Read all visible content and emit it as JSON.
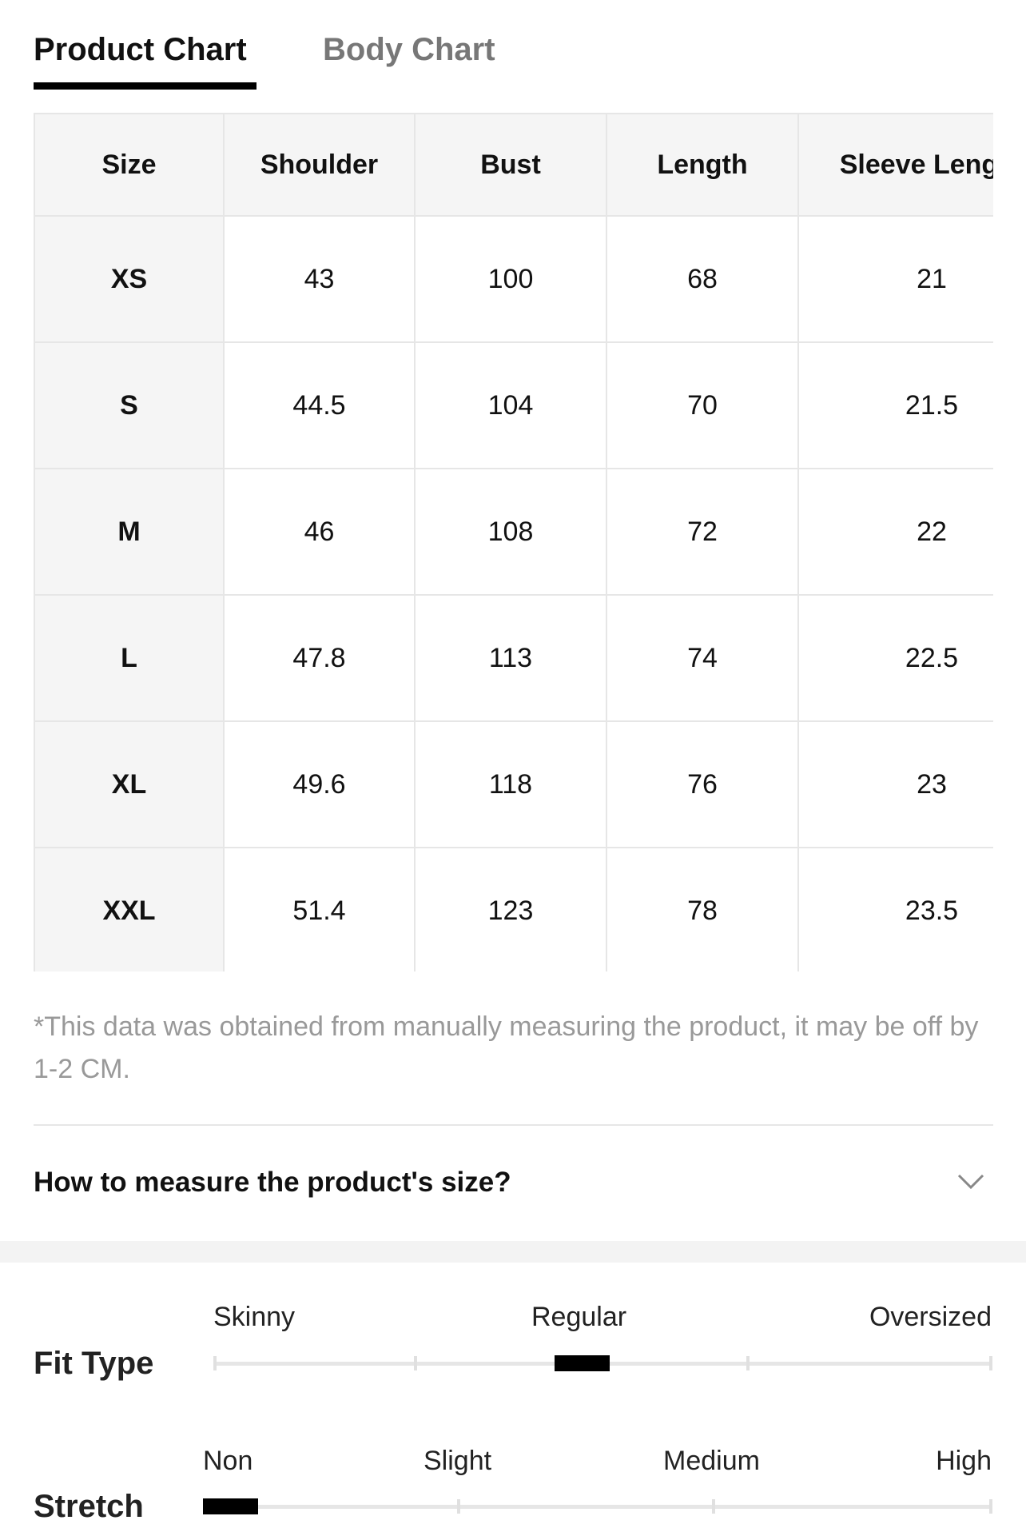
{
  "tabs": [
    "Product Chart",
    "Body Chart"
  ],
  "table": {
    "header": [
      "Size",
      "Shoulder",
      "Bust",
      "Length",
      "Sleeve Length"
    ],
    "rows": [
      [
        "XS",
        43,
        100,
        68,
        21
      ],
      [
        "S",
        44.5,
        104,
        70,
        21.5
      ],
      [
        "M",
        46,
        108,
        72,
        22
      ],
      [
        "L",
        47.8,
        113,
        74,
        22.5
      ],
      [
        "XL",
        49.6,
        118,
        76,
        23
      ],
      [
        "XXL",
        51.4,
        123,
        78,
        23.5
      ]
    ]
  },
  "note": "*This data was obtained from manually measuring the product, it may be off by 1-2 CM.",
  "accordion": "How to measure the product's size?",
  "fit_type": {
    "label": "Fit Type",
    "options": [
      "Skinny",
      "Regular",
      "Oversized"
    ]
  },
  "stretch": {
    "label": "Stretch",
    "options": [
      "Non",
      "Slight",
      "Medium",
      "High"
    ]
  }
}
